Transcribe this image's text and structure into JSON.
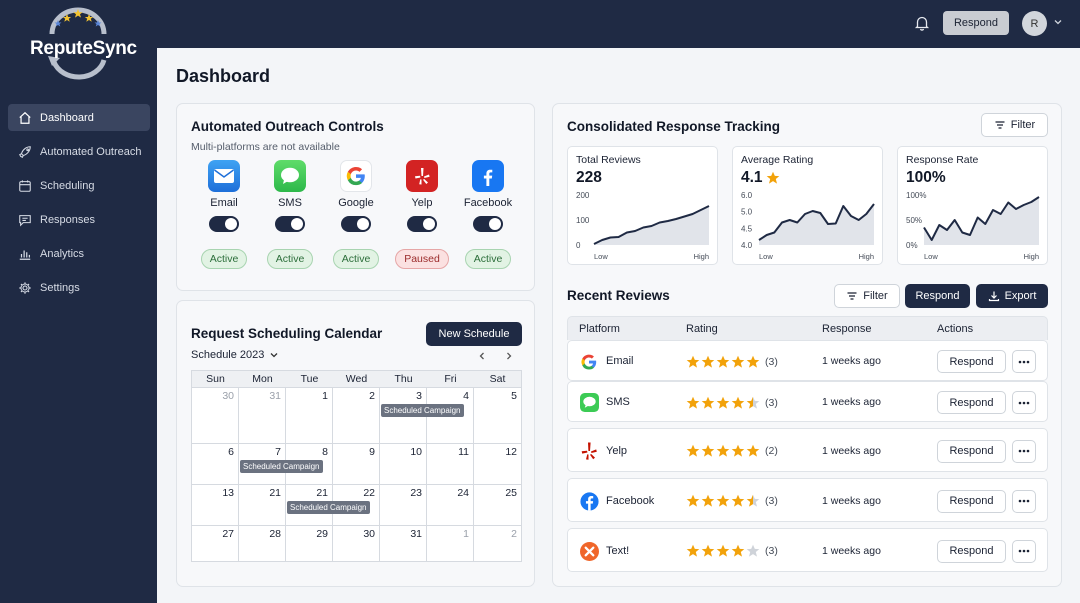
{
  "app": {
    "name": "ReputeSync"
  },
  "colors": {
    "sidebar_bg": "#1f2a44",
    "accent": "#1f2a44",
    "star": "#f2a20a",
    "active_green": "#2c6e3a",
    "paused_red": "#9b2b2b"
  },
  "sidebar": {
    "items": [
      {
        "label": "Dashboard",
        "icon": "home-icon",
        "active": true
      },
      {
        "label": "Automated Outreach",
        "icon": "rocket-icon",
        "active": false
      },
      {
        "label": "Scheduling",
        "icon": "calendar-icon",
        "active": false
      },
      {
        "label": "Responses",
        "icon": "message-icon",
        "active": false
      },
      {
        "label": "Analytics",
        "icon": "bar-chart-icon",
        "active": false
      },
      {
        "label": "Settings",
        "icon": "gear-icon",
        "active": false
      }
    ]
  },
  "topbar": {
    "respond_label": "Respond",
    "avatar_initial": "R"
  },
  "page": {
    "title": "Dashboard"
  },
  "outreach": {
    "title": "Automated Outreach Controls",
    "subtitle": "Multi-platforms are not available",
    "channels": [
      {
        "label": "Email",
        "icon": "email-icon",
        "enabled": true,
        "status": "Active"
      },
      {
        "label": "SMS",
        "icon": "sms-icon",
        "enabled": true,
        "status": "Active"
      },
      {
        "label": "Google",
        "icon": "google-icon",
        "enabled": true,
        "status": "Active"
      },
      {
        "label": "Yelp",
        "icon": "yelp-icon",
        "enabled": true,
        "status": "Paused"
      },
      {
        "label": "Facebook",
        "icon": "facebook-icon",
        "enabled": true,
        "status": "Active"
      }
    ]
  },
  "calendar": {
    "title": "Request Scheduling Calendar",
    "new_schedule_label": "New Schedule",
    "month_label": "Schedule 2023",
    "weekdays": [
      "Sun",
      "Mon",
      "Tue",
      "Wed",
      "Thu",
      "Fri",
      "Sat"
    ],
    "weeks": [
      [
        {
          "day": "30",
          "muted": true
        },
        {
          "day": "31",
          "muted": true
        },
        {
          "day": "1"
        },
        {
          "day": "2"
        },
        {
          "day": "3",
          "event": "Scheduled Campaign"
        },
        {
          "day": "4"
        },
        {
          "day": "5"
        }
      ],
      [
        {
          "day": "6"
        },
        {
          "day": "7",
          "event": "Scheduled Campaign"
        },
        {
          "day": "8"
        },
        {
          "day": "9"
        },
        {
          "day": "10"
        },
        {
          "day": "11"
        },
        {
          "day": "12"
        }
      ],
      [
        {
          "day": "13"
        },
        {
          "day": "21"
        },
        {
          "day": "21",
          "event": "Scheduled Campaign"
        },
        {
          "day": "22"
        },
        {
          "day": "23"
        },
        {
          "day": "24"
        },
        {
          "day": "25"
        }
      ],
      [
        {
          "day": "27"
        },
        {
          "day": "28"
        },
        {
          "day": "29"
        },
        {
          "day": "30"
        },
        {
          "day": "31"
        },
        {
          "day": "1",
          "muted": true
        },
        {
          "day": "2",
          "muted": true
        }
      ]
    ]
  },
  "tracking": {
    "title": "Consolidated Response Tracking",
    "filter_label": "Filter",
    "metrics": [
      {
        "label": "Total Reviews",
        "value": "228",
        "star": false,
        "y_ticks": [
          "200",
          "100",
          "0"
        ],
        "x_low": "Low",
        "x_high": "High",
        "series": [
          0.02,
          0.1,
          0.15,
          0.16,
          0.25,
          0.28,
          0.35,
          0.38,
          0.45,
          0.48,
          0.52,
          0.57,
          0.62,
          0.7,
          0.78
        ]
      },
      {
        "label": "Average Rating",
        "value": "4.1",
        "star": true,
        "y_ticks": [
          "6.0",
          "5.0",
          "4.5",
          "4.0"
        ],
        "x_low": "Low",
        "x_high": "High",
        "series": [
          0.1,
          0.2,
          0.25,
          0.45,
          0.5,
          0.45,
          0.62,
          0.68,
          0.64,
          0.42,
          0.43,
          0.78,
          0.58,
          0.5,
          0.62,
          0.82
        ]
      },
      {
        "label": "Response Rate",
        "value": "100%",
        "star": false,
        "y_ticks": [
          "100%",
          "50%",
          "0%"
        ],
        "x_low": "Low",
        "x_high": "High",
        "series": [
          0.35,
          0.1,
          0.4,
          0.3,
          0.5,
          0.25,
          0.2,
          0.55,
          0.42,
          0.7,
          0.62,
          0.85,
          0.72,
          0.8,
          0.86,
          0.96
        ]
      }
    ]
  },
  "reviews": {
    "title": "Recent Reviews",
    "filter_label": "Filter",
    "respond_label": "Respond",
    "export_label": "Export",
    "columns": [
      "Platform",
      "Rating",
      "Response",
      "Actions"
    ],
    "rows": [
      {
        "platform": "Email",
        "icon": "google-icon",
        "rating": 5,
        "count": "(3)",
        "response": "1 weeks ago",
        "action": "Respond"
      },
      {
        "platform": "SMS",
        "icon": "sms-icon",
        "rating": 4.5,
        "count": "(3)",
        "response": "1 weeks ago",
        "action": "Respond"
      },
      {
        "platform": "Yelp",
        "icon": "yelp-icon",
        "rating": 5,
        "count": "(2)",
        "response": "1 weeks ago",
        "action": "Respond"
      },
      {
        "platform": "Facebook",
        "icon": "facebook-icon",
        "rating": 4.5,
        "count": "(3)",
        "response": "1 weeks ago",
        "action": "Respond"
      },
      {
        "platform": "Text!",
        "icon": "text-icon",
        "rating": 4,
        "count": "(3)",
        "response": "1 weeks ago",
        "action": "Respond"
      }
    ]
  }
}
